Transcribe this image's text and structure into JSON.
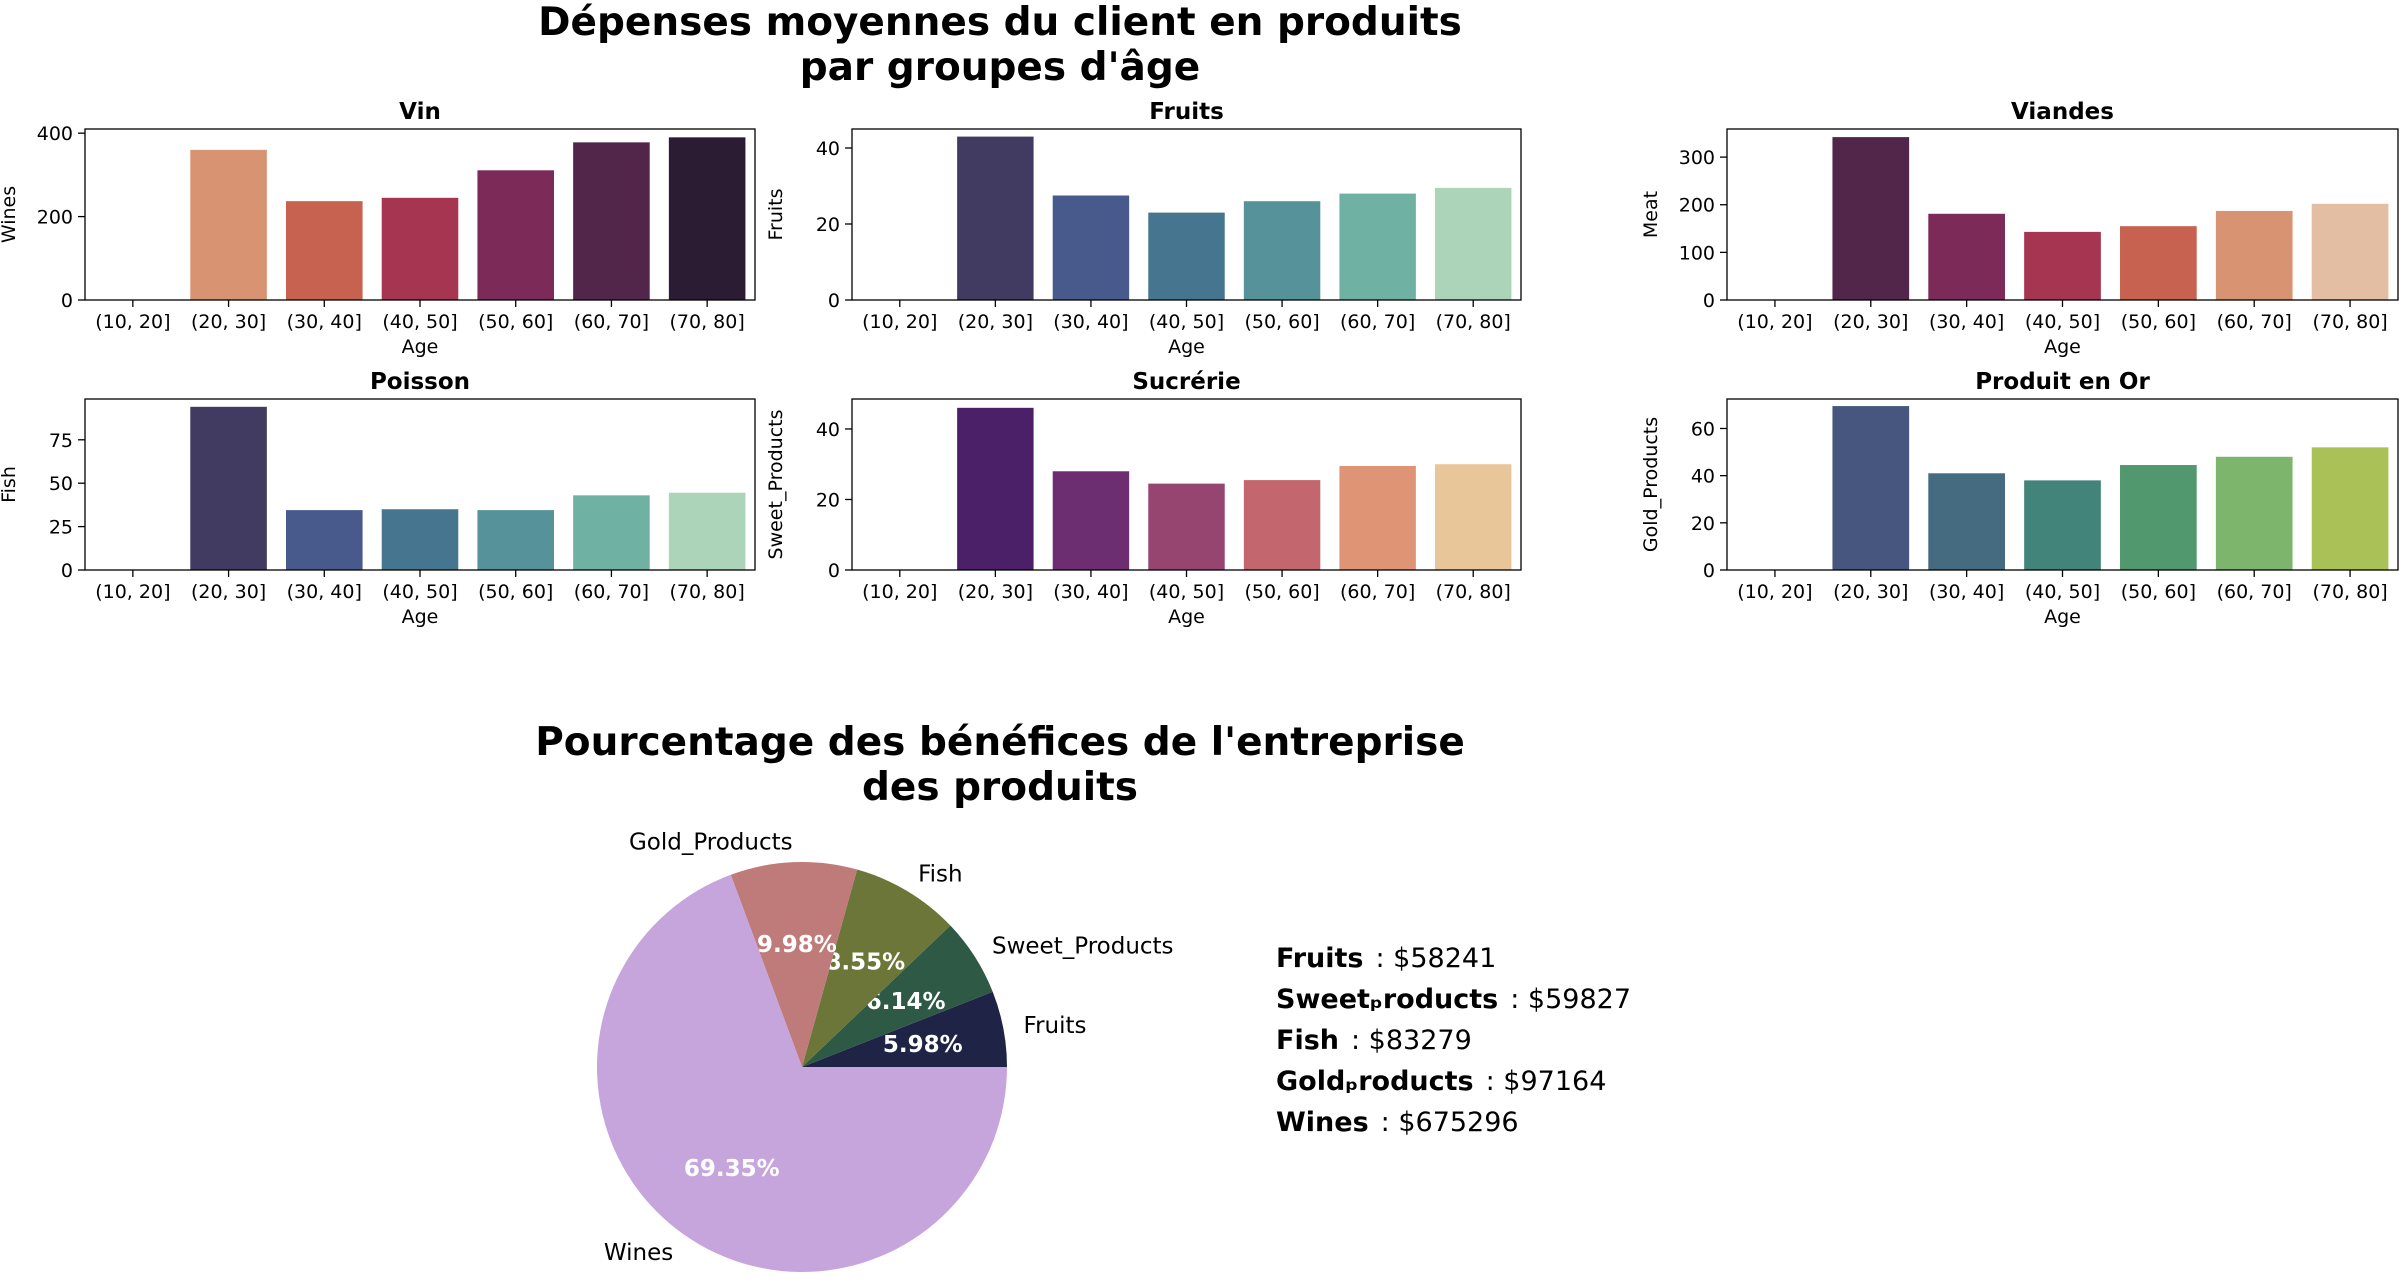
{
  "titles": {
    "main_line1": "Dépenses moyennes du client en produits",
    "main_line2": "par groupes d'âge",
    "pie_line1": "Pourcentage des bénéfices de l'entreprise",
    "pie_line2": "des produits"
  },
  "chart_data": [
    {
      "type": "bar",
      "id": "wines",
      "title": "Vin",
      "xlabel": "Age",
      "ylabel": "Wines",
      "categories": [
        "(10, 20]",
        "(20, 30]",
        "(30, 40]",
        "(40, 50]",
        "(50, 60]",
        "(60, 70]",
        "(70, 80]"
      ],
      "values": [
        0,
        360,
        237,
        245,
        311,
        378,
        390
      ],
      "ylim": [
        0,
        410
      ],
      "yticks": [
        0,
        200,
        400
      ],
      "colors": [
        "#f3c4a4",
        "#d89373",
        "#c86250",
        "#a63552",
        "#7c2b59",
        "#52264a",
        "#2b1c33"
      ]
    },
    {
      "type": "bar",
      "id": "fruits",
      "title": "Fruits",
      "xlabel": "Age",
      "ylabel": "Fruits",
      "categories": [
        "(10, 20]",
        "(20, 30]",
        "(30, 40]",
        "(40, 50]",
        "(50, 60]",
        "(60, 70]",
        "(70, 80]"
      ],
      "values": [
        0,
        43,
        27.5,
        23,
        26,
        28,
        29.5
      ],
      "ylim": [
        0,
        45
      ],
      "yticks": [
        0,
        20,
        40
      ],
      "colors": [
        "#2b1c3a",
        "#413a61",
        "#485a8c",
        "#46768f",
        "#55929a",
        "#6fb1a3",
        "#acd4b9"
      ]
    },
    {
      "type": "bar",
      "id": "meat",
      "title": "Viandes",
      "xlabel": "Age",
      "ylabel": "Meat",
      "categories": [
        "(10, 20]",
        "(20, 30]",
        "(30, 40]",
        "(40, 50]",
        "(50, 60]",
        "(60, 70]",
        "(70, 80]"
      ],
      "values": [
        0,
        342,
        181,
        143,
        155,
        187,
        202
      ],
      "ylim": [
        0,
        359
      ],
      "yticks": [
        0,
        100,
        200,
        300
      ],
      "colors": [
        "#2b1c33",
        "#52264a",
        "#7c2b59",
        "#a63552",
        "#c86250",
        "#d89373",
        "#e4bea2"
      ]
    },
    {
      "type": "bar",
      "id": "fish",
      "title": "Poisson",
      "xlabel": "Age",
      "ylabel": "Fish",
      "categories": [
        "(10, 20]",
        "(20, 30]",
        "(30, 40]",
        "(40, 50]",
        "(50, 60]",
        "(60, 70]",
        "(70, 80]"
      ],
      "values": [
        0,
        94,
        34.5,
        35,
        34.5,
        43,
        44.5
      ],
      "ylim": [
        0,
        98.5
      ],
      "yticks": [
        0,
        25,
        50,
        75
      ],
      "colors": [
        "#2b1c3a",
        "#413a61",
        "#485a8c",
        "#46768f",
        "#55929a",
        "#6fb1a3",
        "#acd4b9"
      ]
    },
    {
      "type": "bar",
      "id": "sweets",
      "title": "Sucrérie",
      "xlabel": "Age",
      "ylabel": "Sweet_Products",
      "categories": [
        "(10, 20]",
        "(20, 30]",
        "(30, 40]",
        "(40, 50]",
        "(50, 60]",
        "(60, 70]",
        "(70, 80]"
      ],
      "values": [
        0,
        46,
        28,
        24.5,
        25.5,
        29.5,
        30
      ],
      "ylim": [
        0,
        48.5
      ],
      "yticks": [
        0,
        20,
        40
      ],
      "colors": [
        "#2d1660",
        "#4b2068",
        "#6c2e71",
        "#964570",
        "#c4666e",
        "#df9476",
        "#e8c699"
      ]
    },
    {
      "type": "bar",
      "id": "gold",
      "title": "Produit en Or",
      "xlabel": "Age",
      "ylabel": "Gold_Products",
      "categories": [
        "(10, 20]",
        "(20, 30]",
        "(30, 40]",
        "(40, 50]",
        "(50, 60]",
        "(60, 70]",
        "(70, 80]"
      ],
      "values": [
        0,
        69.5,
        41,
        38,
        44.5,
        48,
        52
      ],
      "ylim": [
        0,
        72.5
      ],
      "yticks": [
        0,
        20,
        40,
        60
      ],
      "colors": [
        "#452f6b",
        "#46567f",
        "#456b80",
        "#42837a",
        "#52986f",
        "#7db56c",
        "#a9c157"
      ]
    },
    {
      "type": "pie",
      "id": "profit",
      "labels": [
        "Fruits",
        "Sweet_Products",
        "Fish",
        "Gold_Products",
        "Wines"
      ],
      "percentages": [
        5.98,
        6.14,
        8.55,
        9.98,
        69.35
      ],
      "pct_labels": [
        "5.98%",
        "6.14%",
        "8.55%",
        "9.98%",
        "69.35%"
      ],
      "colors": [
        "#1f2345",
        "#2d5945",
        "#6b7638",
        "#bf7b79",
        "#c6a5dc"
      ]
    }
  ],
  "legend": [
    {
      "name": "Fruits",
      "value": ": $58241"
    },
    {
      "name": "Sweetₚroducts",
      "value": ": $59827"
    },
    {
      "name": "Fish",
      "value": ": $83279"
    },
    {
      "name": "Goldₚroducts",
      "value": ": $97164"
    },
    {
      "name": "Wines",
      "value": ": $675296"
    }
  ]
}
